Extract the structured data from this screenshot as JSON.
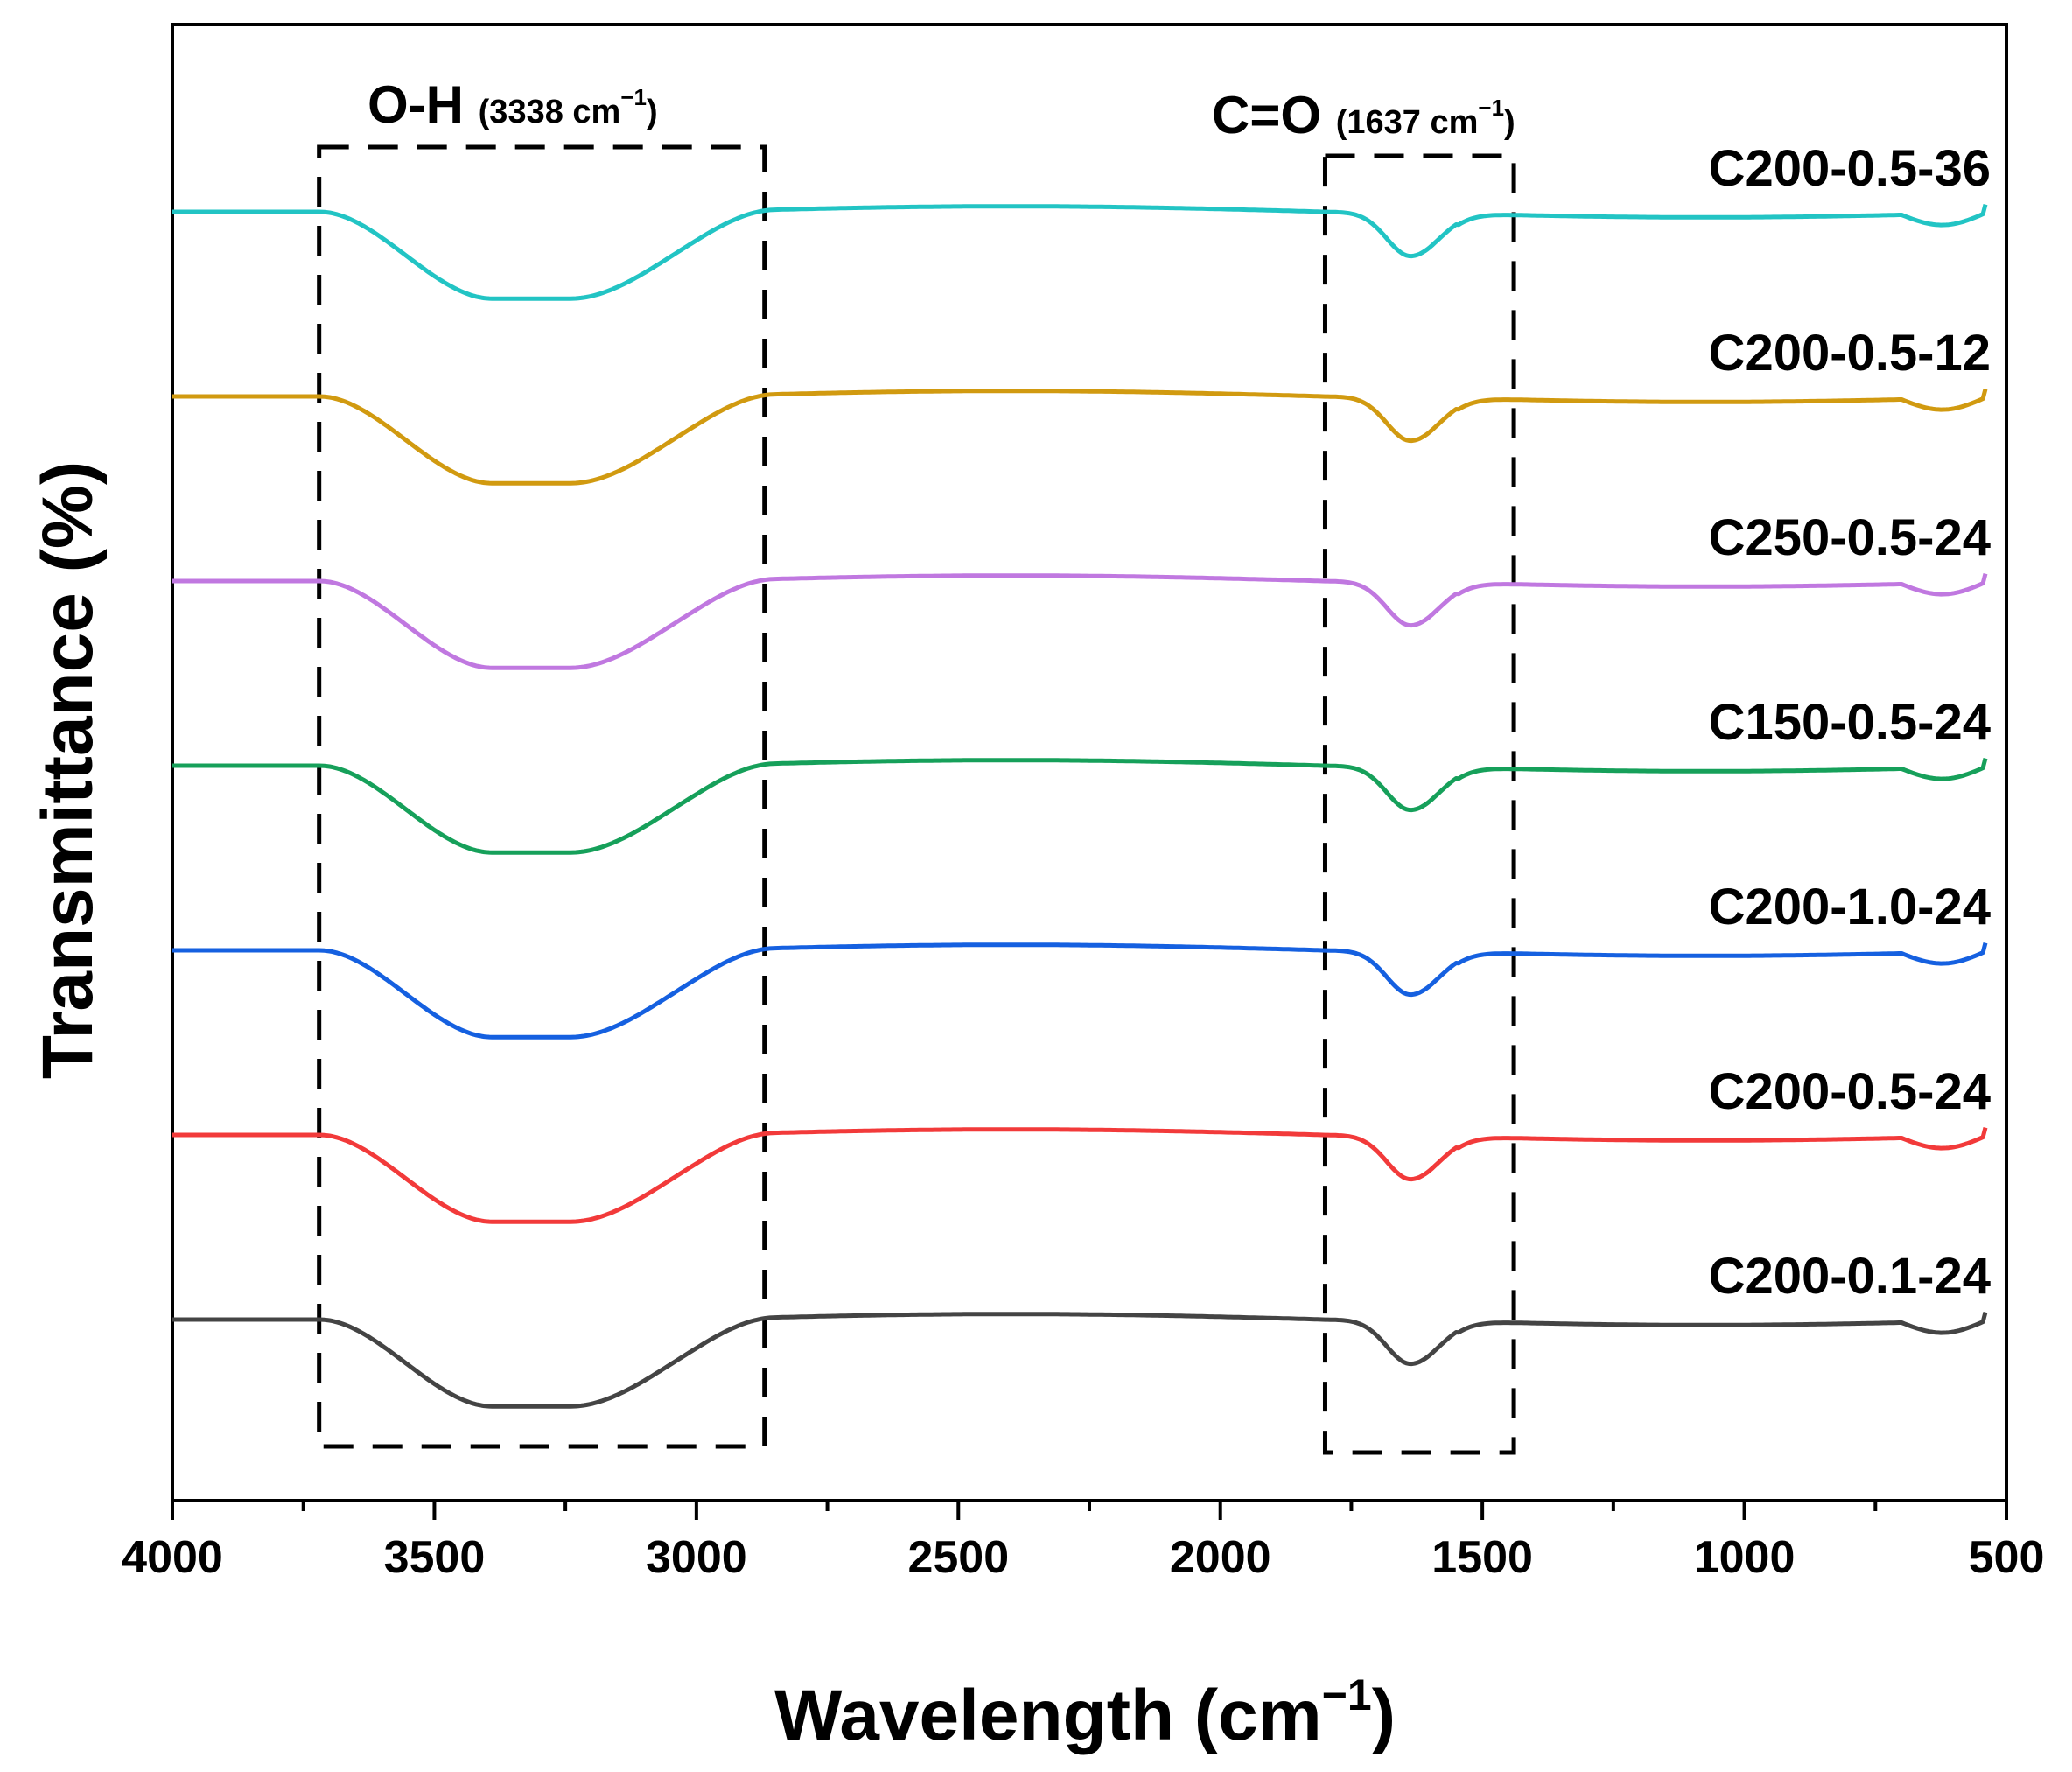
{
  "chart_data": {
    "type": "line",
    "title": "",
    "xlabel": "Wavelength (cm",
    "xlabel_sup": "−1",
    "xlabel_close": ")",
    "ylabel": "Transmittance (%)",
    "xlim": [
      4000,
      500
    ],
    "x_reversed": true,
    "x_ticks": [
      4000,
      3500,
      3000,
      2500,
      2000,
      1500,
      1000,
      500
    ],
    "y_ticks": "none",
    "grid": false,
    "legend": "inline labels at right end of each series",
    "regions": [
      {
        "name": "oh-band",
        "label": "O-H",
        "sub": "(3338 cm",
        "sup": "−1",
        "close": ")",
        "x_range": [
          3720,
          2870
        ],
        "peak": 3338
      },
      {
        "name": "co-band",
        "label": "C=O",
        "sub": "(1637 cm",
        "sup": "−1",
        "close": ")",
        "x_range": [
          1800,
          1440
        ],
        "peak": 1637
      }
    ],
    "series": [
      {
        "name": "C200-0.5-36",
        "color": "#22c4c4",
        "baseline": 7
      },
      {
        "name": "C200-0.5-12",
        "color": "#d19a10",
        "baseline": 6
      },
      {
        "name": "C250-0.5-24",
        "color": "#c078e0",
        "baseline": 5
      },
      {
        "name": "C150-0.5-24",
        "color": "#16a05a",
        "baseline": 4
      },
      {
        "name": "C200-1.0-24",
        "color": "#1560e0",
        "baseline": 3
      },
      {
        "name": "C200-0.5-24",
        "color": "#f23a3a",
        "baseline": 2
      },
      {
        "name": "C200-0.1-24",
        "color": "#444444",
        "baseline": 1
      }
    ],
    "spectrum_shape": {
      "oh_depth": 0.47,
      "co_depth": 0.24
    }
  }
}
